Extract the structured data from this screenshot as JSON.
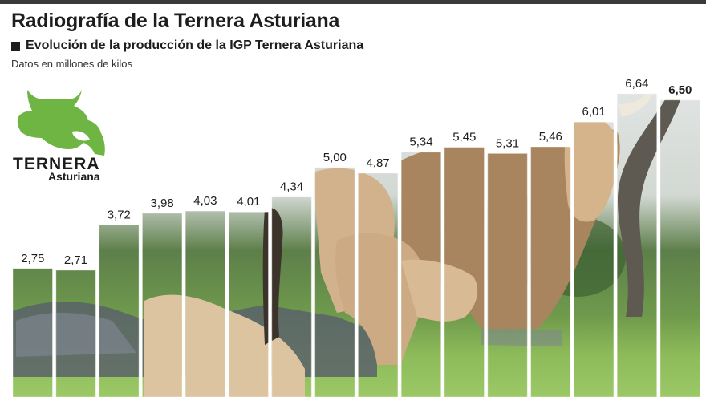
{
  "header": {
    "title": "Radiografía de la Ternera Asturiana",
    "subtitle": "Evolución de la producción de la IGP Ternera Asturiana",
    "note": "Datos en millones de kilos"
  },
  "logo": {
    "line1": "TERNERA",
    "line2": "Asturiana",
    "icon": "cow-head-icon",
    "color": "#6fb544"
  },
  "colors": {
    "sky": "#e3e6e6",
    "trees": "#4a6d3c",
    "grass": "#8dbb5a",
    "cattle": "#c9a57c",
    "text": "#1d1d1b"
  },
  "chart_data": {
    "type": "bar",
    "title": "Evolución de la producción de la IGP Ternera Asturiana",
    "xlabel": "",
    "ylabel": "",
    "values": [
      2.75,
      2.71,
      3.72,
      3.98,
      4.03,
      4.01,
      4.34,
      5.0,
      4.87,
      5.34,
      5.45,
      5.31,
      5.46,
      6.01,
      6.64,
      6.5
    ],
    "labels": [
      "2,75",
      "2,71",
      "3,72",
      "3,98",
      "4,03",
      "4,01",
      "4,34",
      "5,00",
      "4,87",
      "5,34",
      "5,45",
      "5,31",
      "5,46",
      "6,01",
      "6,64",
      "6,50"
    ],
    "highlight_index": 15,
    "grid": false,
    "legend": "none"
  }
}
